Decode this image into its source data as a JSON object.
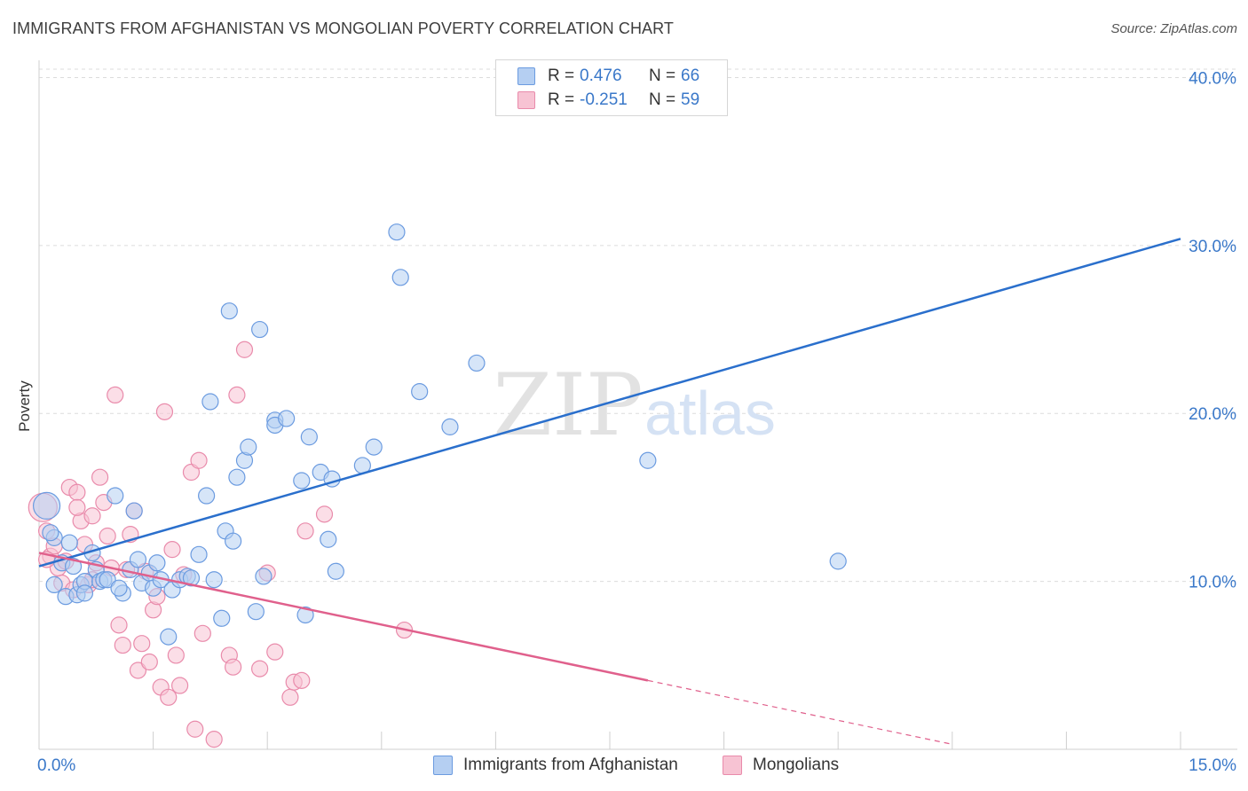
{
  "title": "IMMIGRANTS FROM AFGHANISTAN VS MONGOLIAN POVERTY CORRELATION CHART",
  "source": "Source: ZipAtlas.com",
  "watermark": {
    "zip": "ZIP",
    "atlas": "atlas"
  },
  "legend": {
    "r_label": "R =",
    "n_label": "N =",
    "series1": {
      "r": "0.476",
      "n": "66"
    },
    "series2": {
      "r": "-0.251",
      "n": "59"
    }
  },
  "colors": {
    "blue_fill": "#b5cff2",
    "blue_stroke": "#6b9be0",
    "blue_line": "#2a6fcc",
    "pink_fill": "#f7c3d3",
    "pink_stroke": "#e98bab",
    "pink_line": "#e0608c",
    "tick_text": "#3a78c9"
  },
  "chart_data": {
    "type": "scatter",
    "title": "IMMIGRANTS FROM AFGHANISTAN VS MONGOLIAN POVERTY CORRELATION CHART",
    "xlabel": "",
    "ylabel": "Poverty",
    "xlim": [
      0,
      15
    ],
    "ylim": [
      0,
      40.5
    ],
    "x_tick_labels": [
      "0.0%",
      "15.0%"
    ],
    "y_ticks": [
      10,
      20,
      30,
      40
    ],
    "y_tick_labels": [
      "10.0%",
      "20.0%",
      "30.0%",
      "40.0%"
    ],
    "grid": true,
    "series": [
      {
        "name": "Immigrants from Afghanistan",
        "color": "blue",
        "R": 0.476,
        "N": 66,
        "trend": {
          "x": [
            0,
            15
          ],
          "y": [
            10.9,
            30.4
          ]
        },
        "points": [
          [
            0.1,
            14.5
          ],
          [
            0.2,
            12.6
          ],
          [
            0.2,
            9.8
          ],
          [
            0.3,
            11.1
          ],
          [
            0.35,
            9.1
          ],
          [
            0.4,
            12.3
          ],
          [
            0.45,
            10.9
          ],
          [
            0.5,
            9.2
          ],
          [
            0.55,
            9.8
          ],
          [
            0.6,
            10.0
          ],
          [
            0.7,
            11.7
          ],
          [
            0.75,
            10.7
          ],
          [
            0.8,
            10.0
          ],
          [
            0.85,
            10.1
          ],
          [
            1.0,
            15.1
          ],
          [
            1.1,
            9.3
          ],
          [
            1.2,
            10.7
          ],
          [
            1.25,
            14.2
          ],
          [
            1.3,
            11.3
          ],
          [
            1.35,
            9.9
          ],
          [
            1.45,
            10.5
          ],
          [
            1.5,
            9.6
          ],
          [
            1.55,
            11.1
          ],
          [
            1.6,
            10.1
          ],
          [
            1.75,
            9.5
          ],
          [
            1.85,
            10.1
          ],
          [
            1.95,
            10.3
          ],
          [
            2.1,
            11.6
          ],
          [
            2.2,
            15.1
          ],
          [
            2.25,
            20.7
          ],
          [
            2.3,
            10.1
          ],
          [
            2.4,
            7.8
          ],
          [
            2.45,
            13.0
          ],
          [
            2.5,
            26.1
          ],
          [
            2.55,
            12.4
          ],
          [
            2.6,
            16.2
          ],
          [
            2.7,
            17.2
          ],
          [
            2.75,
            18.0
          ],
          [
            2.85,
            8.2
          ],
          [
            2.9,
            25.0
          ],
          [
            2.95,
            10.3
          ],
          [
            3.1,
            19.6
          ],
          [
            3.1,
            19.3
          ],
          [
            3.25,
            19.7
          ],
          [
            3.45,
            16.0
          ],
          [
            3.5,
            8.0
          ],
          [
            3.55,
            18.6
          ],
          [
            3.7,
            16.5
          ],
          [
            3.8,
            12.5
          ],
          [
            3.85,
            16.1
          ],
          [
            3.9,
            10.6
          ],
          [
            4.25,
            16.9
          ],
          [
            4.4,
            18.0
          ],
          [
            4.7,
            30.8
          ],
          [
            4.75,
            28.1
          ],
          [
            5.0,
            21.3
          ],
          [
            5.4,
            19.2
          ],
          [
            5.75,
            23.0
          ],
          [
            8.0,
            17.2
          ],
          [
            10.5,
            11.2
          ],
          [
            1.7,
            6.7
          ],
          [
            0.9,
            10.1
          ],
          [
            0.15,
            12.9
          ],
          [
            0.6,
            9.3
          ],
          [
            1.05,
            9.6
          ],
          [
            2.0,
            10.2
          ]
        ]
      },
      {
        "name": "Mongolians",
        "color": "pink",
        "R": -0.251,
        "N": 59,
        "trend_solid": {
          "x": [
            0,
            8.0
          ],
          "y": [
            11.7,
            4.1
          ]
        },
        "trend_dashed": {
          "x": [
            8.0,
            12.0
          ],
          "y": [
            4.1,
            0.3
          ]
        },
        "points": [
          [
            0.05,
            14.4
          ],
          [
            0.1,
            13.0
          ],
          [
            0.15,
            11.5
          ],
          [
            0.2,
            12.1
          ],
          [
            0.25,
            10.8
          ],
          [
            0.3,
            9.9
          ],
          [
            0.35,
            11.2
          ],
          [
            0.4,
            15.6
          ],
          [
            0.45,
            9.5
          ],
          [
            0.5,
            15.3
          ],
          [
            0.55,
            13.6
          ],
          [
            0.6,
            12.2
          ],
          [
            0.65,
            9.8
          ],
          [
            0.7,
            13.9
          ],
          [
            0.75,
            11.1
          ],
          [
            0.8,
            16.2
          ],
          [
            0.85,
            14.7
          ],
          [
            0.9,
            12.7
          ],
          [
            0.95,
            10.8
          ],
          [
            1.0,
            21.1
          ],
          [
            1.05,
            7.4
          ],
          [
            1.1,
            6.2
          ],
          [
            1.15,
            10.7
          ],
          [
            1.2,
            12.8
          ],
          [
            1.25,
            14.2
          ],
          [
            1.3,
            4.7
          ],
          [
            1.35,
            6.3
          ],
          [
            1.4,
            10.6
          ],
          [
            1.45,
            5.2
          ],
          [
            1.5,
            8.3
          ],
          [
            1.55,
            9.1
          ],
          [
            1.6,
            3.7
          ],
          [
            1.65,
            20.1
          ],
          [
            1.7,
            3.1
          ],
          [
            1.75,
            11.9
          ],
          [
            1.8,
            5.6
          ],
          [
            1.85,
            3.8
          ],
          [
            1.9,
            10.4
          ],
          [
            2.0,
            16.5
          ],
          [
            2.05,
            1.2
          ],
          [
            2.1,
            17.2
          ],
          [
            2.15,
            6.9
          ],
          [
            2.3,
            0.6
          ],
          [
            2.5,
            5.6
          ],
          [
            2.55,
            4.9
          ],
          [
            2.6,
            21.1
          ],
          [
            2.7,
            23.8
          ],
          [
            2.9,
            4.8
          ],
          [
            3.0,
            10.5
          ],
          [
            3.1,
            5.8
          ],
          [
            3.3,
            3.1
          ],
          [
            3.35,
            4.0
          ],
          [
            3.45,
            4.1
          ],
          [
            3.5,
            13.0
          ],
          [
            3.75,
            14.0
          ],
          [
            4.8,
            7.1
          ],
          [
            0.1,
            11.3
          ],
          [
            0.7,
            10.1
          ],
          [
            0.5,
            14.4
          ]
        ]
      }
    ]
  }
}
